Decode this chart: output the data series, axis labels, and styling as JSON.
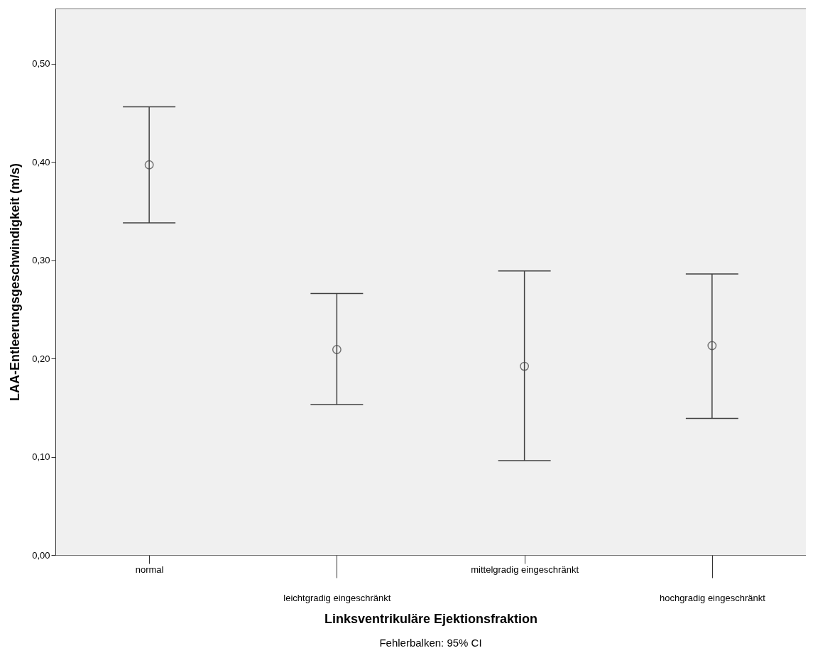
{
  "chart_data": {
    "type": "scatter",
    "xlabel": "Linksventrikuläre Ejektionsfraktion",
    "ylabel": "LAA-Entleerungsgeschwindigkeit (m/s)",
    "categories": [
      "normal",
      "leichtgradig eingeschränkt",
      "mittelgradig eingeschränkt",
      "hochgradig eingeschränkt"
    ],
    "series": [
      {
        "color": "#404040",
        "values": [
          0.397,
          0.209,
          0.192,
          0.213
        ],
        "errors": [
          [
            0.338,
            0.456
          ],
          [
            0.153,
            0.266
          ],
          [
            0.096,
            0.289
          ],
          [
            0.139,
            0.286
          ]
        ]
      }
    ],
    "ylim": [
      0,
      0.556
    ],
    "yticks": [
      {
        "value": 0,
        "label": "0,00"
      },
      {
        "value": 0.1,
        "label": "0,10"
      },
      {
        "value": 0.2,
        "label": "0,20"
      },
      {
        "value": 0.3,
        "label": "0,30"
      },
      {
        "value": 0.4,
        "label": "0,40"
      },
      {
        "value": 0.5,
        "label": "0,50"
      }
    ],
    "marker": "circle",
    "grid": false,
    "annotations": [
      "Fehlerbalken: 95% CI"
    ]
  }
}
